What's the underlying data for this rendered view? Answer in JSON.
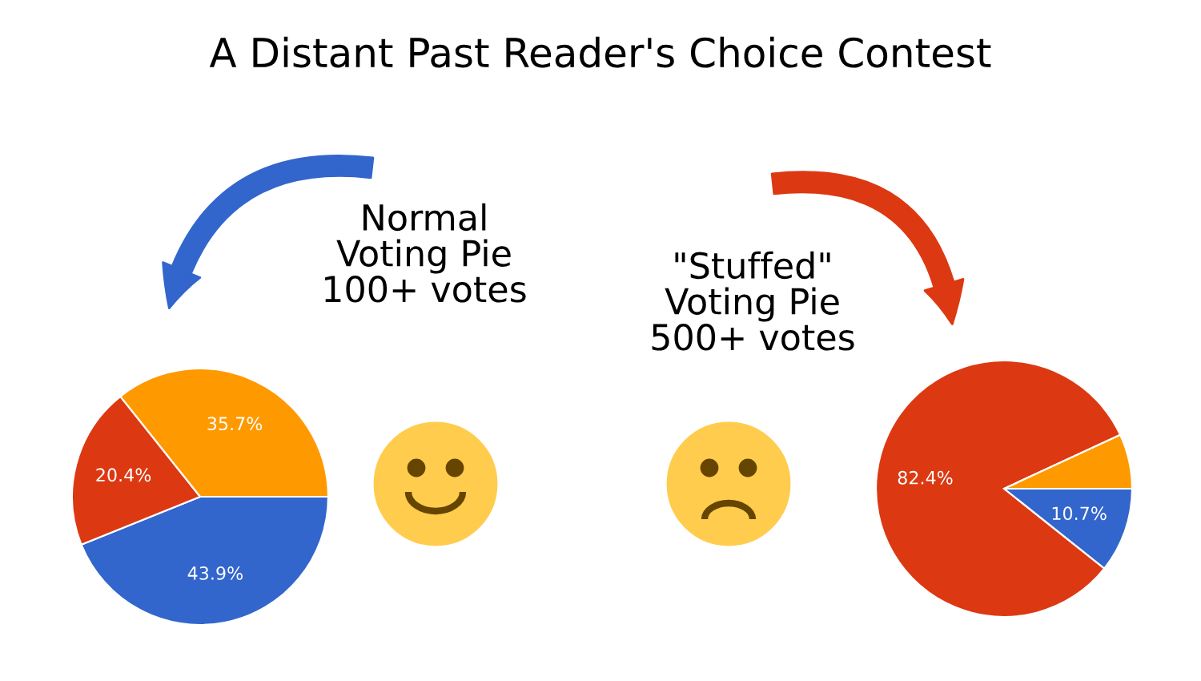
{
  "chart_data": [
    {
      "type": "pie",
      "title": "A Distant Past Reader's Choice Contest",
      "subtitle": "Normal\nVoting Pie\n100+ votes",
      "categories": [
        null,
        null,
        null
      ],
      "values": [
        43.9,
        20.4,
        35.7
      ],
      "colors": [
        "#3366cc",
        "#dc3912",
        "#ff9900"
      ],
      "value_labels": [
        "43.9%",
        "20.4%",
        "35.7%"
      ]
    },
    {
      "type": "pie",
      "subtitle": "\"Stuffed\"\nVoting Pie\n500+ votes",
      "categories": [
        null,
        null,
        null
      ],
      "values": [
        10.7,
        82.4,
        6.9
      ],
      "colors": [
        "#3366cc",
        "#dc3912",
        "#ff9900"
      ],
      "value_labels": [
        "10.7%",
        "82.4%",
        null
      ]
    }
  ]
}
